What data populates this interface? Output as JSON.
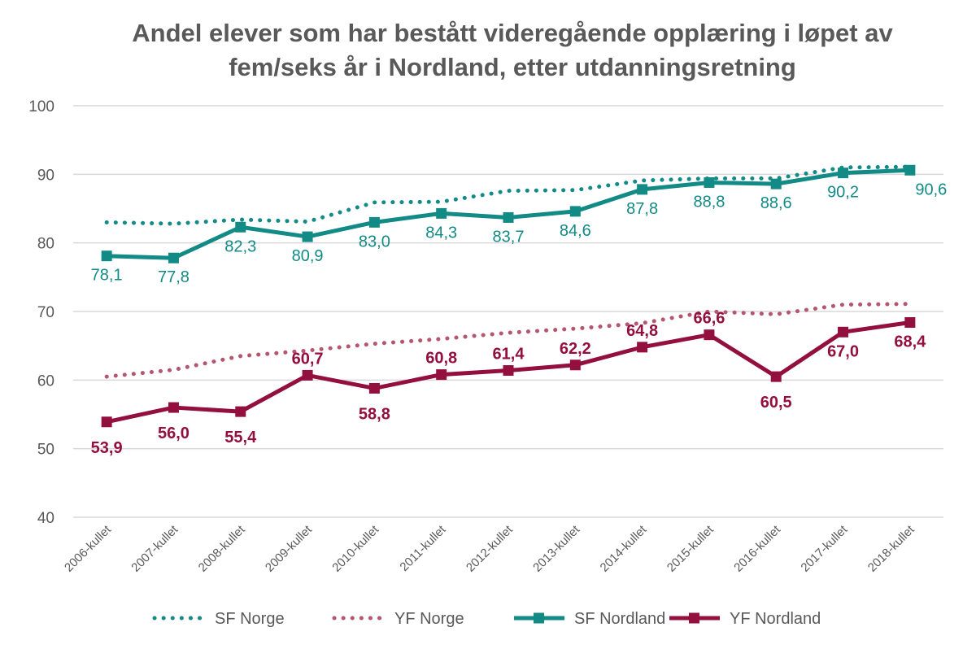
{
  "chart_data": {
    "type": "line",
    "title_lines": [
      "Andel elever som har bestått videregående opplæring i løpet av",
      "fem/seks år i Nordland, etter utdanningsretning"
    ],
    "categories": [
      "2006-kullet",
      "2007-kullet",
      "2008-kullet",
      "2009-kullet",
      "2010-kullet",
      "2011-kullet",
      "2012-kullet",
      "2013-kullet",
      "2014-kullet",
      "2015-kullet",
      "2016-kullet",
      "2017-kullet",
      "2018-kullet"
    ],
    "ylim": [
      40,
      100
    ],
    "yticks": [
      "40",
      "50",
      "60",
      "70",
      "80",
      "90",
      "100"
    ],
    "grid": true,
    "legend_position": "bottom",
    "series": [
      {
        "name": "SF Norge",
        "style": "dotted",
        "color": "#128a86",
        "values": [
          83.0,
          82.8,
          83.4,
          83.1,
          85.9,
          86.0,
          87.6,
          87.7,
          89.1,
          89.4,
          89.4,
          91.0,
          91.1
        ]
      },
      {
        "name": "YF Norge",
        "style": "dotted",
        "color": "#b5566e",
        "values": [
          60.5,
          61.5,
          63.5,
          64.3,
          65.3,
          66.0,
          66.9,
          67.5,
          68.3,
          70.0,
          69.6,
          71.0,
          71.1
        ]
      },
      {
        "name": "SF Nordland",
        "style": "solid",
        "color": "#128a86",
        "values": [
          78.1,
          77.8,
          82.3,
          80.9,
          83.0,
          84.3,
          83.7,
          84.6,
          87.8,
          88.8,
          88.6,
          90.2,
          90.6
        ],
        "labels": [
          "78,1",
          "77,8",
          "82,3",
          "80,9",
          "83,0",
          "84,3",
          "83,7",
          "84,6",
          "87,8",
          "88,8",
          "88,6",
          "90,2",
          "90,6"
        ]
      },
      {
        "name": "YF Nordland",
        "style": "solid",
        "color": "#930f3e",
        "values": [
          53.9,
          56.0,
          55.4,
          60.7,
          58.8,
          60.8,
          61.4,
          62.2,
          64.8,
          66.6,
          60.5,
          67.0,
          68.4
        ],
        "labels": [
          "53,9",
          "56,0",
          "55,4",
          "60,7",
          "58,8",
          "60,8",
          "61,4",
          "62,2",
          "64,8",
          "66,6",
          "60,5",
          "67,0",
          "68,4"
        ]
      }
    ]
  }
}
